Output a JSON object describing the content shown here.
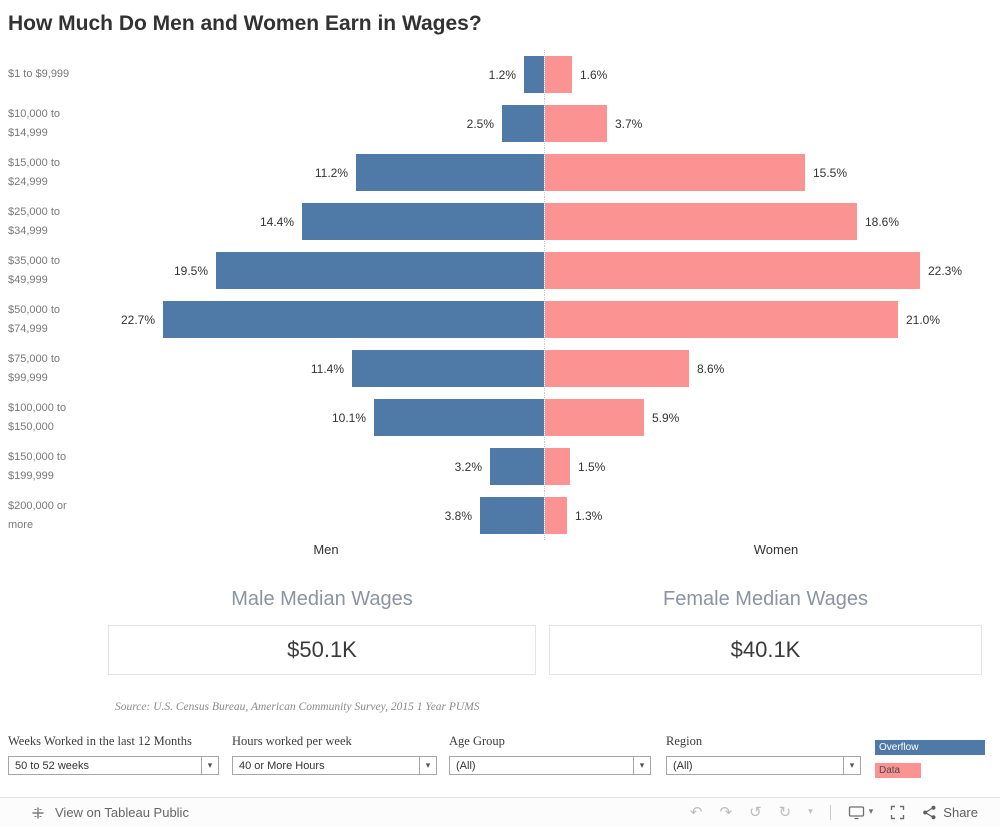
{
  "title": "How Much Do Men and Women Earn in Wages?",
  "chart_data": {
    "type": "bar",
    "subtype": "diverging-horizontal",
    "title": "How Much Do Men and Women Earn in Wages?",
    "categories": [
      "$1 to $9,999",
      "$10,000 to $14,999",
      "$15,000 to $24,999",
      "$25,000 to $34,999",
      "$35,000 to $49,999",
      "$50,000 to $74,999",
      "$75,000 to $99,999",
      "$100,000 to $150,000",
      "$150,000 to $199,999",
      "$200,000 or more"
    ],
    "series": [
      {
        "name": "Men",
        "color": "#4f7aa7",
        "values": [
          1.2,
          2.5,
          11.2,
          14.4,
          19.5,
          22.7,
          11.4,
          10.1,
          3.2,
          3.8
        ]
      },
      {
        "name": "Women",
        "color": "#fa9391",
        "values": [
          1.6,
          3.7,
          15.5,
          18.6,
          22.3,
          21.0,
          8.6,
          5.9,
          1.5,
          1.3
        ]
      }
    ],
    "value_format": "percent",
    "axis_labels": {
      "left": "Men",
      "right": "Women"
    },
    "xlim": [
      0,
      23
    ],
    "grid": false
  },
  "medians": {
    "male": {
      "title": "Male Median Wages",
      "value": "$50.1K"
    },
    "female": {
      "title": "Female Median Wages",
      "value": "$40.1K"
    }
  },
  "source": "Source: U.S. Census Bureau, American Community Survey, 2015 1 Year PUMS",
  "filters": [
    {
      "label": "Weeks Worked in the last 12 Months",
      "value": "50 to 52 weeks"
    },
    {
      "label": "Hours worked per week",
      "value": "40 or More Hours"
    },
    {
      "label": "Age Group",
      "value": "(All)"
    },
    {
      "label": "Region",
      "value": "(All)"
    }
  ],
  "legend": [
    {
      "label": "Overflow",
      "color": "#4f7aa7",
      "text_color": "#ffffff"
    },
    {
      "label": "Data",
      "color": "#fa9391",
      "text_color": "#4a4a4a"
    }
  ],
  "toolbar": {
    "view_label": "View on Tableau Public",
    "share_label": "Share",
    "icons": [
      "undo",
      "redo",
      "replay",
      "refresh",
      "caret-down",
      "display-device",
      "fullscreen",
      "share"
    ]
  }
}
